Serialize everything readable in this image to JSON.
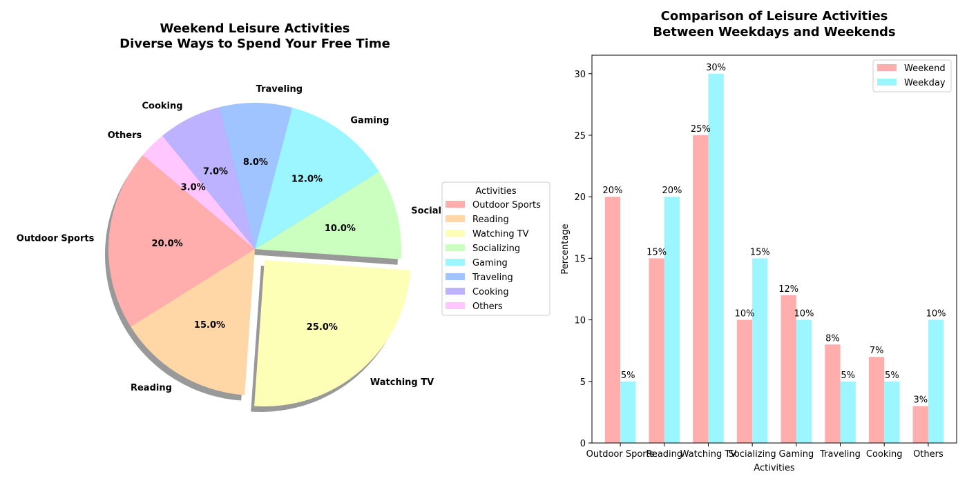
{
  "chart_data": [
    {
      "type": "pie",
      "title_lines": [
        "Weekend Leisure Activities",
        "Diverse Ways to Spend Your Free Time"
      ],
      "labels": [
        "Outdoor Sports",
        "Reading",
        "Watching TV",
        "Socializing",
        "Gaming",
        "Traveling",
        "Cooking",
        "Others"
      ],
      "values": [
        20,
        15,
        25,
        10,
        12,
        8,
        7,
        3
      ],
      "pct_labels": [
        "20.0%",
        "15.0%",
        "25.0%",
        "10.0%",
        "12.0%",
        "8.0%",
        "7.0%",
        "3.0%"
      ],
      "colors": [
        "#ffadad",
        "#ffd6a5",
        "#fdffb6",
        "#caffbf",
        "#9bf6ff",
        "#a0c4ff",
        "#bdb2ff",
        "#ffc6ff"
      ],
      "explode": [
        0,
        0,
        0.1,
        0,
        0,
        0,
        0,
        0
      ],
      "start_angle": 140,
      "shadow": true,
      "legend_title": "Activities",
      "legend_position": "center-right"
    },
    {
      "type": "bar",
      "title_lines": [
        "Comparison of Leisure Activities",
        "Between Weekdays and Weekends"
      ],
      "categories": [
        "Outdoor Sports",
        "Reading",
        "Watching TV",
        "Socializing",
        "Gaming",
        "Traveling",
        "Cooking",
        "Others"
      ],
      "series": [
        {
          "name": "Weekend",
          "values": [
            20,
            15,
            25,
            10,
            12,
            8,
            7,
            3
          ],
          "labels": [
            "20%",
            "15%",
            "25%",
            "10%",
            "12%",
            "8%",
            "7%",
            "3%"
          ],
          "color": "#ffadad"
        },
        {
          "name": "Weekday",
          "values": [
            5,
            20,
            30,
            15,
            10,
            5,
            5,
            10
          ],
          "labels": [
            "5%",
            "20%",
            "30%",
            "15%",
            "10%",
            "5%",
            "5%",
            "10%"
          ],
          "color": "#9bf6ff"
        }
      ],
      "xlabel": "Activities",
      "ylabel": "Percentage",
      "ylim": [
        0,
        31.5
      ],
      "yticks": [
        0,
        5,
        10,
        15,
        20,
        25,
        30
      ],
      "grid": false,
      "legend_position": "top-right"
    }
  ]
}
